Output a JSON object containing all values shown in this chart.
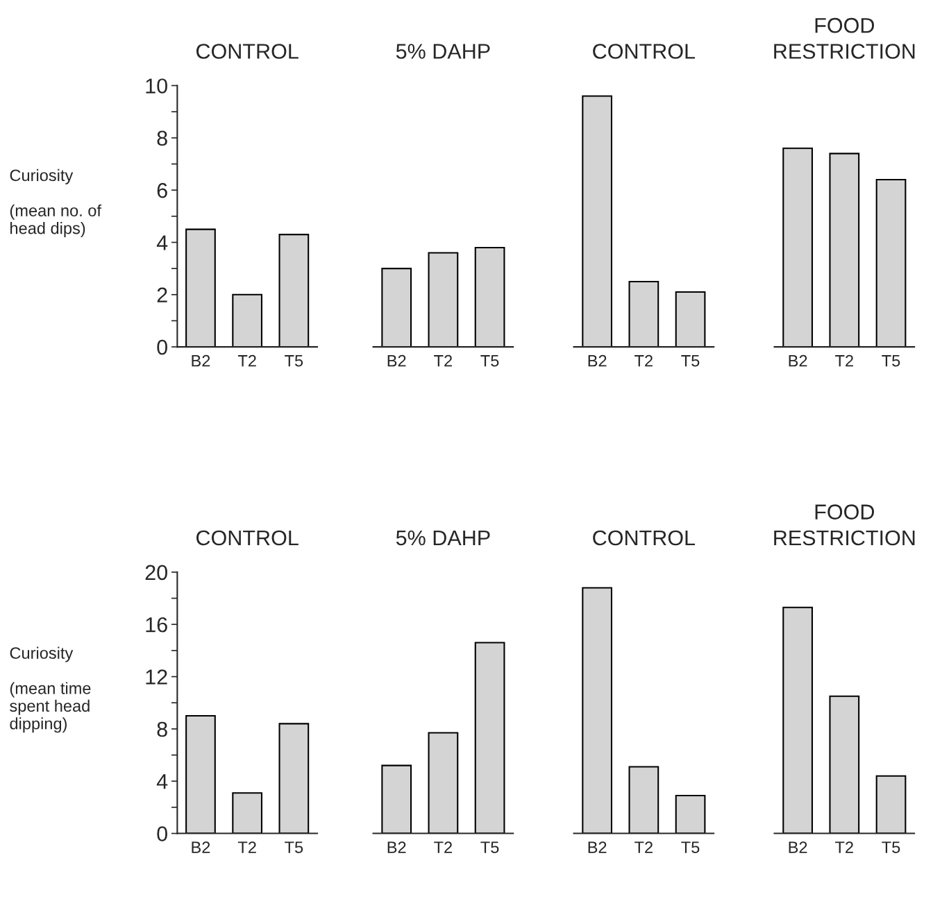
{
  "chart_data": [
    {
      "type": "bar",
      "title": "CONTROL",
      "ylabel": "Curiosity\n\n(mean no. of\nhead dips)",
      "categories": [
        "B2",
        "T2",
        "T5"
      ],
      "values": [
        4.5,
        2.0,
        4.3
      ],
      "color": "#d4d4d4",
      "ylim": [
        0,
        10
      ],
      "yticks": [
        0,
        {
          "value": 1,
          "label": null
        },
        2,
        {
          "value": 3,
          "label": null
        },
        4,
        {
          "value": 5,
          "label": null
        },
        6,
        {
          "value": 7,
          "label": null
        },
        8,
        {
          "value": 9,
          "label": null
        },
        10
      ],
      "grid": false
    },
    {
      "type": "bar",
      "title": "5% DAHP",
      "categories": [
        "B2",
        "T2",
        "T5"
      ],
      "values": [
        3.0,
        3.6,
        3.8
      ],
      "color": "#d4d4d4",
      "ylim": [
        0,
        10
      ],
      "tick_labels": "x",
      "grid": false
    },
    {
      "type": "bar",
      "title": "CONTROL",
      "categories": [
        "B2",
        "T2",
        "T5"
      ],
      "values": [
        9.6,
        2.5,
        2.1
      ],
      "color": "#d4d4d4",
      "ylim": [
        0,
        10
      ],
      "tick_labels": "x",
      "grid": false
    },
    {
      "type": "bar",
      "title": "FOOD\nRESTRICTION",
      "categories": [
        "B2",
        "T2",
        "T5"
      ],
      "values": [
        7.6,
        7.4,
        6.4
      ],
      "color": "#d4d4d4",
      "ylim": [
        0,
        10
      ],
      "tick_labels": "x",
      "grid": false
    },
    {
      "type": "bar",
      "title": "CONTROL",
      "ylabel": "Curiosity\n\n(mean time\nspent head\ndipping)",
      "categories": [
        "B2",
        "T2",
        "T5"
      ],
      "values": [
        9.0,
        3.1,
        8.4
      ],
      "color": "#d4d4d4",
      "ylim": [
        0,
        20
      ],
      "yticks": [
        0,
        {
          "value": 2,
          "label": null
        },
        4,
        {
          "value": 6,
          "label": null
        },
        8,
        {
          "value": 10,
          "label": null
        },
        12,
        {
          "value": 14,
          "label": null
        },
        16,
        {
          "value": 18,
          "label": null
        },
        20
      ],
      "grid": false
    },
    {
      "type": "bar",
      "title": "5% DAHP",
      "categories": [
        "B2",
        "T2",
        "T5"
      ],
      "values": [
        5.2,
        7.7,
        14.6
      ],
      "color": "#d4d4d4",
      "ylim": [
        0,
        20
      ],
      "tick_labels": "x",
      "grid": false
    },
    {
      "type": "bar",
      "title": "CONTROL",
      "categories": [
        "B2",
        "T2",
        "T5"
      ],
      "values": [
        18.8,
        5.1,
        2.9
      ],
      "color": "#d4d4d4",
      "ylim": [
        0,
        20
      ],
      "tick_labels": "x",
      "grid": false
    },
    {
      "type": "bar",
      "title": "FOOD\nRESTRICTION",
      "categories": [
        "B2",
        "T2",
        "T5"
      ],
      "values": [
        17.3,
        10.5,
        4.4
      ],
      "color": "#d4d4d4",
      "ylim": [
        0,
        20
      ],
      "tick_labels": "x",
      "grid": false
    }
  ]
}
